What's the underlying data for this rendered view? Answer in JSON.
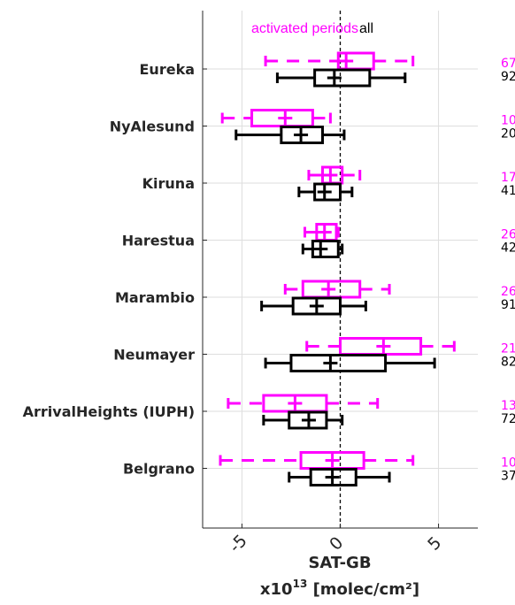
{
  "chart_data": {
    "type": "box",
    "orientation": "horizontal",
    "xlabel": "SAT-GB",
    "xunit_prefix": "x10",
    "xunit_exp": "13",
    "xunit_rest": " [molec/cm²]",
    "xlim": [
      -7,
      7
    ],
    "xticks": [
      -5,
      0,
      5
    ],
    "xtick_labels": [
      "-5",
      "0",
      "5"
    ],
    "grid": true,
    "legend_position": "top",
    "categories": [
      "Eureka",
      "NyAlesund",
      "Kiruna",
      "Harestua",
      "Marambio",
      "Neumayer",
      "ArrivalHeights (IUPH)",
      "Belgrano"
    ],
    "series": [
      {
        "name": "activated periods",
        "color": "#ff00ff",
        "boxes": [
          {
            "min": -3.8,
            "q1": -0.1,
            "median": 0.3,
            "q3": 1.7,
            "max": 3.7,
            "mean": 0.3,
            "whisker_style": "dashed",
            "count": "67"
          },
          {
            "min": -6.0,
            "q1": -4.5,
            "median": -2.8,
            "q3": -1.4,
            "max": -0.5,
            "mean": -2.8,
            "whisker_style": "dashed",
            "count": "10"
          },
          {
            "min": -1.6,
            "q1": -0.9,
            "median": -0.5,
            "q3": 0.1,
            "max": 1.0,
            "mean": -0.5,
            "whisker_style": "dashed",
            "count": "17"
          },
          {
            "min": -1.8,
            "q1": -1.2,
            "median": -0.8,
            "q3": -0.2,
            "max": -0.1,
            "mean": -0.8,
            "whisker_style": "dashed",
            "count": "26"
          },
          {
            "min": -2.8,
            "q1": -1.9,
            "median": -0.6,
            "q3": 1.0,
            "max": 2.5,
            "mean": -0.6,
            "whisker_style": "dashed",
            "count": "26"
          },
          {
            "min": -1.7,
            "q1": 0.0,
            "median": 2.2,
            "q3": 4.1,
            "max": 5.8,
            "mean": 2.2,
            "whisker_style": "dashed",
            "count": "21"
          },
          {
            "min": -5.7,
            "q1": -3.9,
            "median": -2.3,
            "q3": -0.7,
            "max": 1.9,
            "mean": -2.3,
            "whisker_style": "dashed",
            "count": "13"
          },
          {
            "min": -6.1,
            "q1": -2.0,
            "median": -0.4,
            "q3": 1.2,
            "max": 3.7,
            "mean": -0.4,
            "whisker_style": "dashed",
            "count": "10"
          }
        ]
      },
      {
        "name": "all",
        "color": "#000000",
        "boxes": [
          {
            "min": -3.2,
            "q1": -1.3,
            "median": -0.3,
            "q3": 1.5,
            "max": 3.3,
            "mean": -0.3,
            "whisker_style": "solid",
            "count": "92"
          },
          {
            "min": -5.3,
            "q1": -3.0,
            "median": -2.0,
            "q3": -0.9,
            "max": 0.2,
            "mean": -2.0,
            "whisker_style": "solid",
            "count": "20"
          },
          {
            "min": -2.1,
            "q1": -1.3,
            "median": -0.8,
            "q3": 0.0,
            "max": 0.6,
            "mean": -0.8,
            "whisker_style": "solid",
            "count": "41"
          },
          {
            "min": -1.9,
            "q1": -1.4,
            "median": -1.0,
            "q3": -0.1,
            "max": 0.1,
            "mean": -1.0,
            "whisker_style": "solid",
            "count": "42"
          },
          {
            "min": -4.0,
            "q1": -2.4,
            "median": -1.2,
            "q3": 0.0,
            "max": 1.3,
            "mean": -1.2,
            "whisker_style": "solid",
            "count": "91"
          },
          {
            "min": -3.8,
            "q1": -2.5,
            "median": -0.5,
            "q3": 2.3,
            "max": 4.8,
            "mean": -0.5,
            "whisker_style": "solid",
            "count": "82"
          },
          {
            "min": -3.9,
            "q1": -2.6,
            "median": -1.6,
            "q3": -0.7,
            "max": 0.1,
            "mean": -1.6,
            "whisker_style": "solid",
            "count": "72"
          },
          {
            "min": -2.6,
            "q1": -1.5,
            "median": -0.4,
            "q3": 0.8,
            "max": 2.5,
            "mean": -0.4,
            "whisker_style": "solid",
            "count": "37"
          }
        ]
      }
    ]
  }
}
